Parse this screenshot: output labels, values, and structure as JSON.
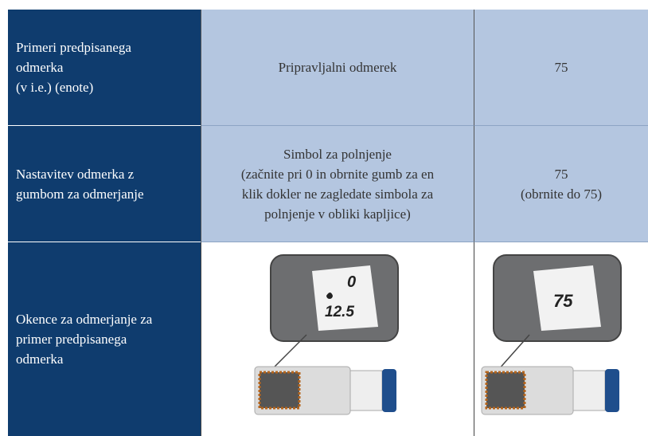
{
  "table": {
    "rows": [
      [
        "Primeri predpisanega\nodmerka\n(v i.e.) (enote)",
        "Pripravljalni odmerek",
        "75"
      ],
      [
        "Nastavitev odmerka z\ngumbom za odmerjanje",
        "Simbol za polnjenje\n(začnite pri 0 in obrnite gumb za en\nklik dokler ne zagledate simbola za\npolnjenje v obliki kapljice)",
        "75\n(obrnite do 75)"
      ],
      [
        "Okence za odmerjanje za\nprimer predpisanega\nodmerka"
      ]
    ]
  },
  "illustrations": [
    {
      "dial": [
        "0",
        "12.5"
      ]
    },
    {
      "dial": [
        "75"
      ]
    }
  ]
}
